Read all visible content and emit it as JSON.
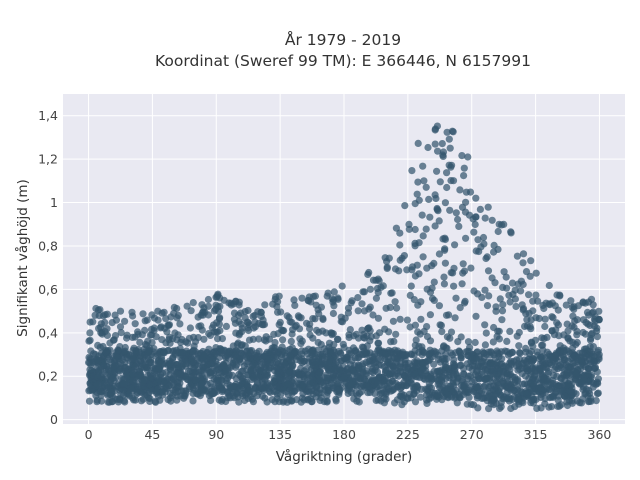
{
  "chart_data": {
    "type": "scatter",
    "title": "År 1979 - 2019",
    "subtitle": "Koordinat (Sweref 99 TM): E 366446, N 6157991",
    "xlabel": "Vågriktning (grader)",
    "ylabel": "Signifikant våghöjd (m)",
    "xlim": [
      -18,
      378
    ],
    "ylim": [
      -0.02,
      1.5
    ],
    "x_ticks": [
      {
        "value": 0,
        "label": "0"
      },
      {
        "value": 45,
        "label": "45"
      },
      {
        "value": 90,
        "label": "90"
      },
      {
        "value": 135,
        "label": "135"
      },
      {
        "value": 180,
        "label": "180"
      },
      {
        "value": 225,
        "label": "225"
      },
      {
        "value": 270,
        "label": "270"
      },
      {
        "value": 315,
        "label": "315"
      },
      {
        "value": 360,
        "label": "360"
      }
    ],
    "y_ticks": [
      {
        "value": 0,
        "label": "0"
      },
      {
        "value": 0.2,
        "label": "0,2"
      },
      {
        "value": 0.4,
        "label": "0,4"
      },
      {
        "value": 0.6,
        "label": "0,6"
      },
      {
        "value": 0.8,
        "label": "0,8"
      },
      {
        "value": 1.0,
        "label": "1"
      },
      {
        "value": 1.2,
        "label": "1,2"
      },
      {
        "value": 1.4,
        "label": "1,4"
      }
    ],
    "grid": true,
    "marker_color": "#34566e",
    "plot_background": "#e9e9f2",
    "envelope": {
      "direction": [
        0,
        15,
        30,
        45,
        60,
        75,
        90,
        105,
        120,
        135,
        150,
        165,
        180,
        195,
        205,
        215,
        222,
        228,
        234,
        240,
        246,
        252,
        258,
        264,
        270,
        280,
        290,
        300,
        315,
        330,
        345,
        360
      ],
      "height_max": [
        0.55,
        0.5,
        0.5,
        0.5,
        0.52,
        0.55,
        0.58,
        0.55,
        0.55,
        0.57,
        0.58,
        0.6,
        0.62,
        0.67,
        0.72,
        0.85,
        1.0,
        1.2,
        1.33,
        1.42,
        1.42,
        1.38,
        1.32,
        1.25,
        1.18,
        1.0,
        0.92,
        0.85,
        0.7,
        0.6,
        0.55,
        0.58
      ],
      "height_min": [
        0.08,
        0.08,
        0.08,
        0.08,
        0.08,
        0.08,
        0.08,
        0.08,
        0.08,
        0.08,
        0.08,
        0.08,
        0.08,
        0.08,
        0.08,
        0.07,
        0.06,
        0.06,
        0.05,
        0.05,
        0.05,
        0.05,
        0.05,
        0.05,
        0.05,
        0.05,
        0.05,
        0.05,
        0.05,
        0.06,
        0.07,
        0.08
      ]
    }
  }
}
